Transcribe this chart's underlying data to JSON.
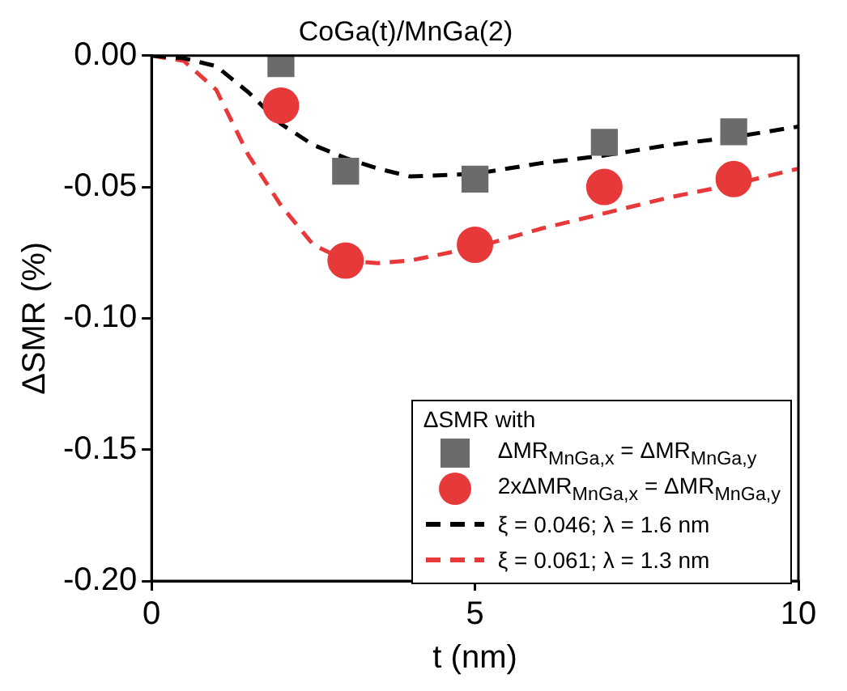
{
  "chart_data": {
    "type": "scatter",
    "title": "CoGa(t)/MnGa(2)",
    "xlabel": "t (nm)",
    "ylabel": "ΔSMR (%)",
    "legend_title": "ΔSMR with",
    "legend": "bottom right",
    "grid": false,
    "xlim": [
      0,
      10
    ],
    "xticks": [
      0,
      5,
      10
    ],
    "ylim": [
      -0.2,
      0
    ],
    "yticks": [
      {
        "value": 0,
        "label": "0.00"
      },
      {
        "value": -0.05,
        "label": "-0.05"
      },
      {
        "value": -0.1,
        "label": "-0.10"
      },
      {
        "value": -0.15,
        "label": "-0.15"
      },
      {
        "value": -0.2,
        "label": "-0.20"
      }
    ],
    "series": [
      {
        "name": "ΔMR$_{MnGa,x}$ = ΔMR$_{MnGa,y}$",
        "marker": "square",
        "color": "#6b6b6b",
        "x": [
          2,
          3,
          5,
          7,
          9
        ],
        "values": [
          -0.003,
          -0.044,
          -0.047,
          -0.033,
          -0.029
        ]
      },
      {
        "name": "2xΔMR$_{MnGa,x}$ = ΔMR$_{MnGa,y}$",
        "marker": "circle",
        "color": "#e8393a",
        "x": [
          2,
          3,
          5,
          7,
          9
        ],
        "values": [
          -0.019,
          -0.078,
          -0.072,
          -0.05,
          -0.047
        ]
      },
      {
        "name": "ξ = 0.046; λ = 1.6 nm",
        "type": "line",
        "marker": "none",
        "line_style": "dashed",
        "color": "#000000",
        "x": [
          0,
          0.5,
          1,
          1.5,
          2,
          2.5,
          3,
          3.5,
          4,
          5,
          6,
          7,
          8,
          9,
          10
        ],
        "values": [
          0,
          -0.001,
          -0.004,
          -0.014,
          -0.026,
          -0.034,
          -0.039,
          -0.043,
          -0.046,
          -0.045,
          -0.041,
          -0.038,
          -0.034,
          -0.031,
          -0.027
        ]
      },
      {
        "name": "ξ = 0.061; λ = 1.3 nm",
        "type": "line",
        "marker": "none",
        "line_style": "dashed",
        "color": "#e8393a",
        "x": [
          0,
          0.5,
          1,
          1.5,
          2,
          2.5,
          3,
          3.5,
          4,
          5,
          6,
          7,
          8,
          9,
          10
        ],
        "values": [
          0,
          -0.002,
          -0.013,
          -0.038,
          -0.057,
          -0.072,
          -0.078,
          -0.079,
          -0.078,
          -0.073,
          -0.066,
          -0.06,
          -0.054,
          -0.049,
          -0.043
        ]
      }
    ]
  }
}
